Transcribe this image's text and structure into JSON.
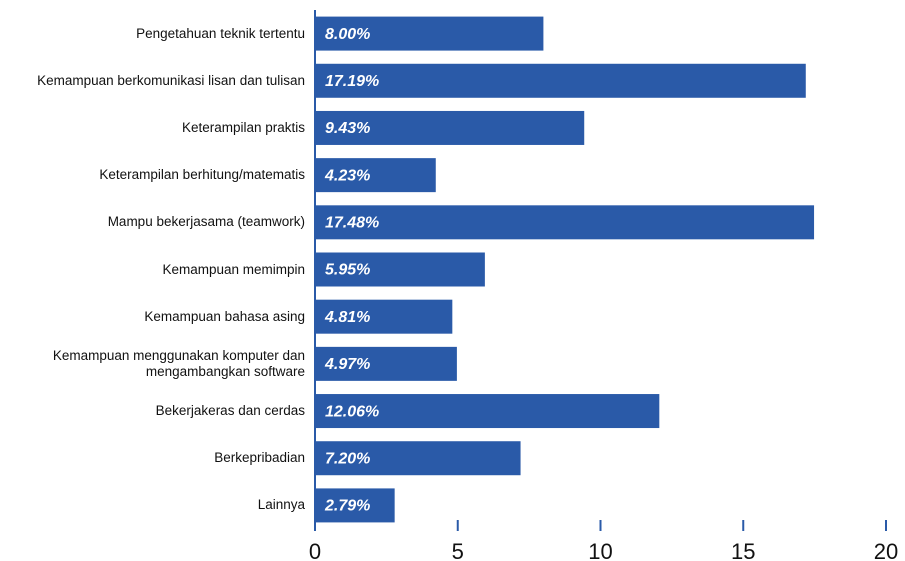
{
  "chart_data": {
    "type": "barh",
    "categories": [
      "Pengetahuan teknik tertentu",
      "Kemampuan berkomunikasi lisan dan tulisan",
      "Keterampilan praktis",
      "Keterampilan berhitung/matematis",
      "Mampu bekerjasama (teamwork)",
      "Kemampuan memimpin",
      "Kemampuan bahasa asing",
      "Kemampuan menggunakan komputer dan mengambangkan software",
      "Bekerjakeras dan cerdas",
      "Berkepribadian",
      "Lainnya"
    ],
    "values": [
      8.0,
      17.19,
      9.43,
      4.23,
      17.48,
      5.95,
      4.81,
      4.97,
      12.06,
      7.2,
      2.79
    ],
    "value_labels": [
      "8.00%",
      "17.19%",
      "9.43%",
      "4.23%",
      "17.48%",
      "5.95%",
      "4.81%",
      "4.97%",
      "12.06%",
      "7.20%",
      "2.79%"
    ],
    "color": "#2a5aa8",
    "xlim": [
      0,
      20
    ],
    "xticks": [
      0,
      5,
      10,
      15,
      20
    ]
  }
}
